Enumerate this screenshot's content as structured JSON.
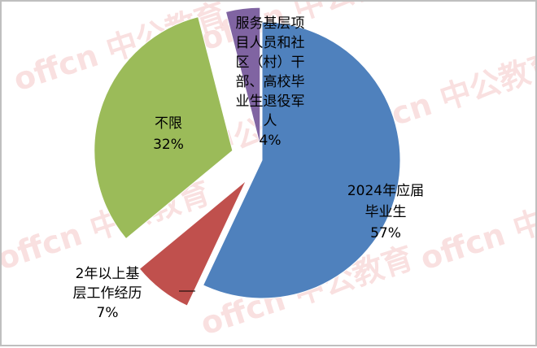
{
  "chart_data": {
    "type": "pie",
    "exploded": true,
    "slices": [
      {
        "label_lines": [
          "2024年应届",
          "毕业生"
        ],
        "percent_label": "57%",
        "value": 57,
        "color": "#4f81bd"
      },
      {
        "label_lines": [
          "2年以上基",
          "层工作经历"
        ],
        "percent_label": "7%",
        "value": 7,
        "color": "#c0504d"
      },
      {
        "label_lines": [
          "不限"
        ],
        "percent_label": "32%",
        "value": 32,
        "color": "#9bbb59"
      },
      {
        "label_lines": [
          "服务基层项",
          "目人员和社",
          "区（村）干",
          "部、高校毕",
          "业生退役军",
          "人"
        ],
        "percent_label": "4%",
        "value": 4,
        "color": "#8064a2"
      }
    ]
  },
  "watermark": [
    "offcn",
    "中公教育"
  ]
}
